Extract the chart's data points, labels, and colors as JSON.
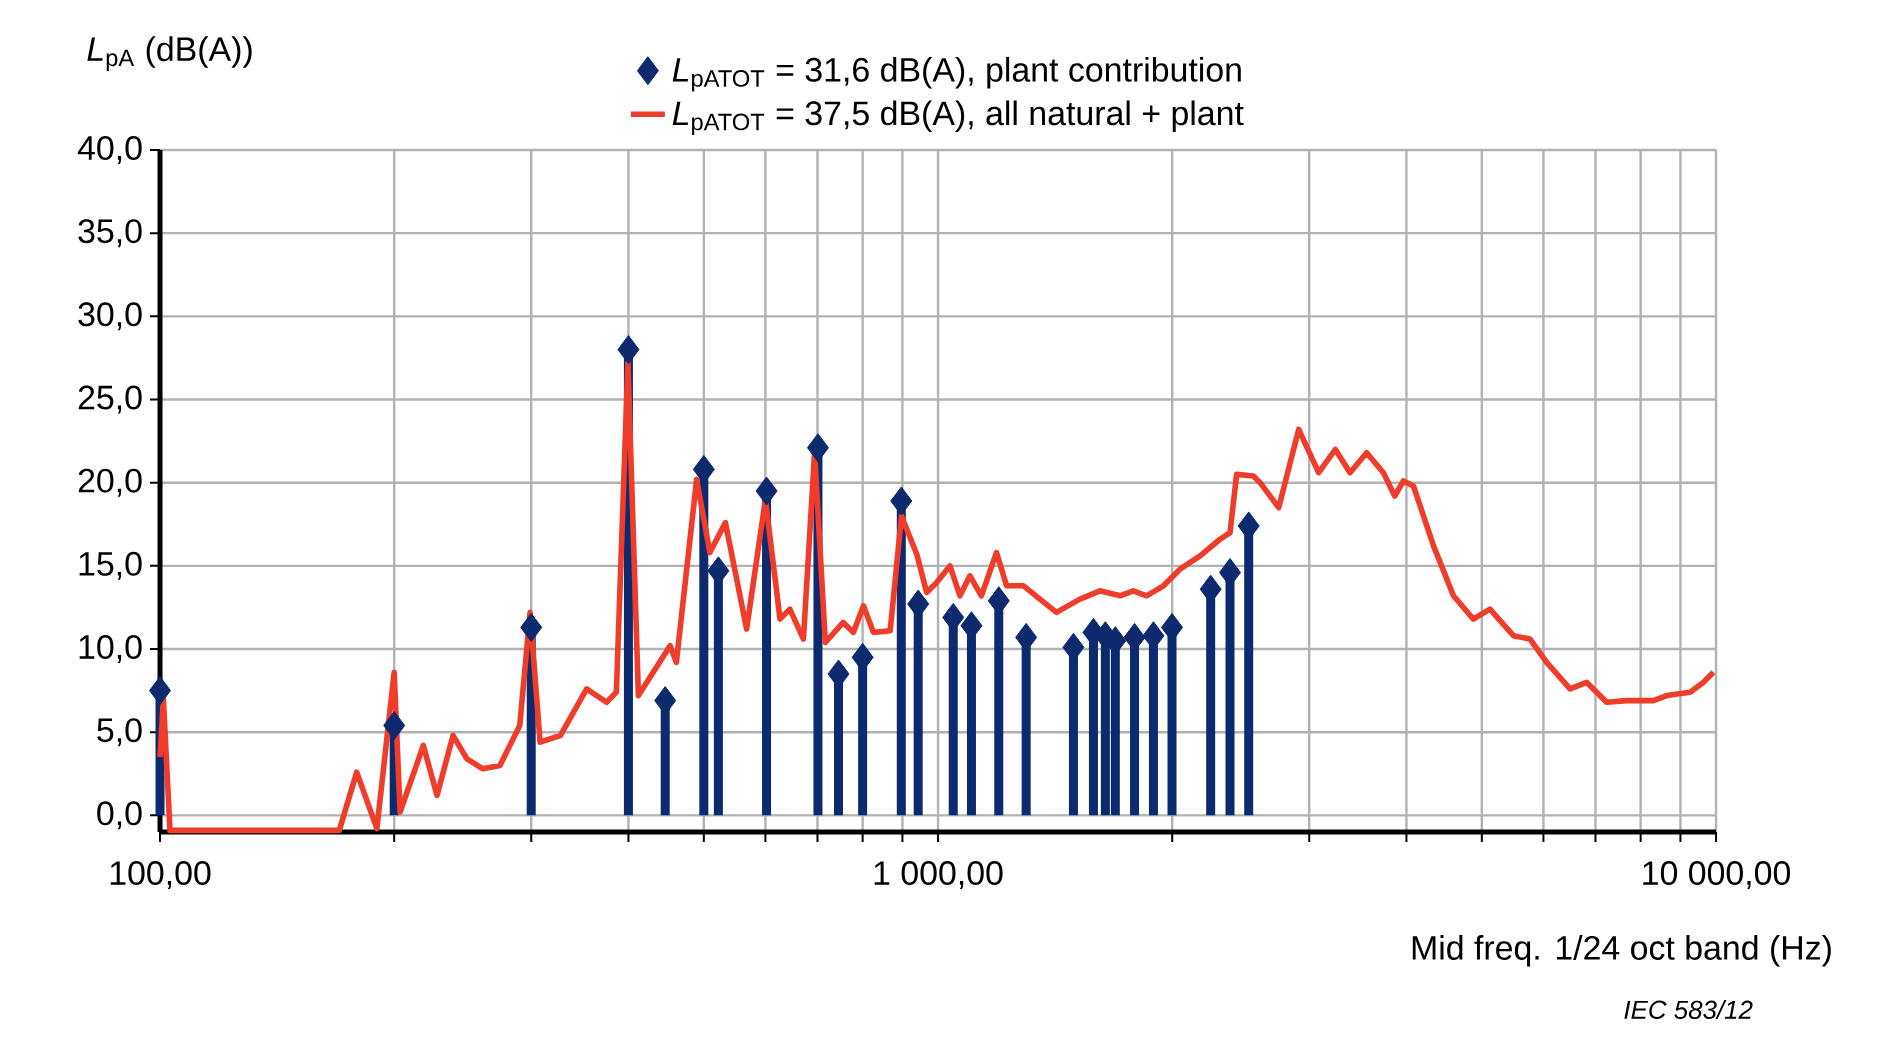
{
  "chart_data": {
    "type": "line",
    "ylabel": "*L*$_{pA}$   (dB(A))",
    "xlabel": "Mid freq. 1/24 oct band   (Hz)",
    "annotations": [
      "IEC  583/12"
    ],
    "log": "x",
    "xlim": [
      100,
      10000
    ],
    "xticks": [
      {
        "value": 100,
        "label": "100,00"
      },
      {
        "value": 200,
        "label": null
      },
      {
        "value": 300,
        "label": null
      },
      {
        "value": 400,
        "label": null
      },
      {
        "value": 500,
        "label": null
      },
      {
        "value": 600,
        "label": null
      },
      {
        "value": 700,
        "label": null
      },
      {
        "value": 800,
        "label": null
      },
      {
        "value": 900,
        "label": null
      },
      {
        "value": 1000,
        "label": "1 000,00"
      },
      {
        "value": 2000,
        "label": null
      },
      {
        "value": 3000,
        "label": null
      },
      {
        "value": 4000,
        "label": null
      },
      {
        "value": 5000,
        "label": null
      },
      {
        "value": 6000,
        "label": null
      },
      {
        "value": 7000,
        "label": null
      },
      {
        "value": 8000,
        "label": null
      },
      {
        "value": 9000,
        "label": null
      },
      {
        "value": 10000,
        "label": "10 000,00"
      }
    ],
    "ylim": [
      -1,
      40
    ],
    "yticks": [
      {
        "value": 0,
        "label": "0,0"
      },
      {
        "value": 5,
        "label": "5,0"
      },
      {
        "value": 10,
        "label": "10,0"
      },
      {
        "value": 15,
        "label": "15,0"
      },
      {
        "value": 20,
        "label": "20,0"
      },
      {
        "value": 25,
        "label": "25,0"
      },
      {
        "value": 30,
        "label": "30,0"
      },
      {
        "value": 35,
        "label": "35,0"
      },
      {
        "value": 40,
        "label": "40,0"
      }
    ],
    "grid": true,
    "legend": "top",
    "series": [
      {
        "type": "lollipop",
        "name": "*L*$_{pATOT}$ = 31,6 dB(A), plant contribution",
        "color": "#0d2a6e",
        "marker": "diamond",
        "x": [
          100,
          200,
          300,
          400,
          446,
          500,
          522,
          602,
          701,
          745,
          800,
          897,
          943,
          1046,
          1104,
          1197,
          1298,
          1493,
          1584,
          1641,
          1690,
          1789,
          1892,
          1999,
          2241,
          2373,
          2508
        ],
        "values": [
          7.5,
          5.4,
          11.3,
          28.0,
          6.9,
          20.8,
          14.7,
          19.5,
          22.1,
          8.5,
          9.5,
          18.9,
          12.7,
          11.9,
          11.4,
          12.9,
          10.7,
          10.1,
          11.0,
          10.8,
          10.5,
          10.7,
          10.8,
          11.3,
          13.6,
          14.6,
          17.4
        ]
      },
      {
        "name": "*L*$_{pATOT}$ = 37,5 dB(A), all natural + plant",
        "color": "#f03c2a",
        "marker": "none",
        "line_style": "solid",
        "x": [
          100,
          101,
          103,
          119,
          134.5,
          151,
          170,
          179,
          190,
          200,
          203.5,
          218,
          227,
          238,
          248,
          260,
          273.5,
          290,
          299,
          308,
          327,
          353.5,
          375,
          386,
          399.5,
          412,
          452.5,
          461,
          489.5,
          509,
          533,
          567.5,
          600,
          626.5,
          645,
          671.5,
          694,
          716.5,
          755.5,
          778.5,
          802,
          826,
          868,
          897.5,
          939,
          967,
          996,
          1036,
          1067,
          1099,
          1137,
          1189,
          1225,
          1288,
          1352,
          1420,
          1522,
          1615,
          1714,
          1782,
          1854,
          1949,
          2046,
          2172,
          2304,
          2373,
          2420,
          2543,
          2594,
          2741,
          2908,
          3085,
          3242,
          3385,
          3556,
          3737,
          3864,
          3965,
          4084,
          4334,
          4598,
          4877,
          5122,
          5490,
          5767,
          6058,
          6492,
          6819,
          7234,
          7676,
          8310,
          8641,
          9261,
          9634,
          9924
        ],
        "values": [
          3.5,
          7.0,
          -0.9,
          -0.9,
          -0.9,
          -0.9,
          -0.9,
          2.6,
          -0.8,
          8.6,
          0.2,
          4.2,
          1.2,
          4.8,
          3.4,
          2.8,
          3.0,
          5.4,
          12.2,
          4.4,
          4.8,
          7.6,
          6.8,
          7.4,
          27.2,
          7.2,
          10.2,
          9.2,
          20.2,
          15.8,
          17.6,
          11.2,
          19.0,
          11.8,
          12.4,
          10.6,
          21.8,
          10.4,
          11.6,
          11.0,
          12.6,
          11.0,
          11.1,
          18.0,
          15.7,
          13.4,
          14.0,
          15.0,
          13.2,
          14.4,
          13.2,
          15.8,
          13.8,
          13.8,
          13.0,
          12.2,
          13.0,
          13.5,
          13.2,
          13.5,
          13.2,
          13.8,
          14.8,
          15.6,
          16.6,
          17.0,
          20.5,
          20.4,
          20.0,
          18.5,
          23.2,
          20.6,
          22.0,
          20.6,
          21.8,
          20.6,
          19.2,
          20.1,
          19.8,
          16.2,
          13.2,
          11.8,
          12.4,
          10.8,
          10.6,
          9.2,
          7.6,
          8.0,
          6.8,
          6.9,
          6.9,
          7.2,
          7.4,
          8.0,
          8.6
        ]
      }
    ]
  }
}
